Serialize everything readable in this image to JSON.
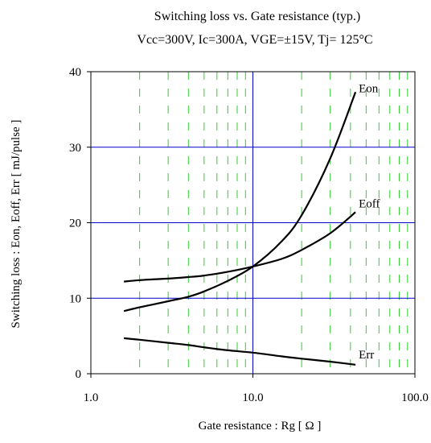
{
  "chart_data": {
    "type": "line",
    "title": "Switching loss  vs.  Gate resistance (typ.)",
    "subtitle": "Vcc=300V, Ic=300A, VGE=±15V, Tj= 125°C",
    "xlabel": "Gate resistance  :  Rg  [ Ω ]",
    "ylabel": "Switching loss  :  Eon, Eoff, Err  [ mJ/pulse ]",
    "x_scale": "log",
    "xlim": [
      1.0,
      100.0
    ],
    "ylim": [
      0,
      40
    ],
    "x_ticks": [
      "1.0",
      "10.0",
      "100.0"
    ],
    "y_ticks": [
      "0",
      "10",
      "20",
      "30",
      "40"
    ],
    "grid": true,
    "series": [
      {
        "name": "Eon",
        "x": [
          1.6,
          2,
          3,
          4,
          5,
          7,
          10,
          15,
          20,
          30,
          43
        ],
        "y": [
          8.3,
          8.8,
          9.6,
          10.2,
          10.9,
          12.3,
          14.2,
          17.5,
          21.0,
          28.5,
          37.3
        ]
      },
      {
        "name": "Eoff",
        "x": [
          1.6,
          2,
          3,
          4,
          5,
          7,
          10,
          15,
          20,
          30,
          43
        ],
        "y": [
          12.2,
          12.4,
          12.6,
          12.8,
          13.0,
          13.5,
          14.2,
          15.2,
          16.4,
          18.6,
          21.4
        ]
      },
      {
        "name": "Err",
        "x": [
          1.6,
          2,
          3,
          4,
          5,
          7,
          10,
          15,
          20,
          30,
          43
        ],
        "y": [
          4.7,
          4.5,
          4.1,
          3.8,
          3.5,
          3.1,
          2.8,
          2.3,
          2.0,
          1.6,
          1.2
        ]
      }
    ]
  }
}
